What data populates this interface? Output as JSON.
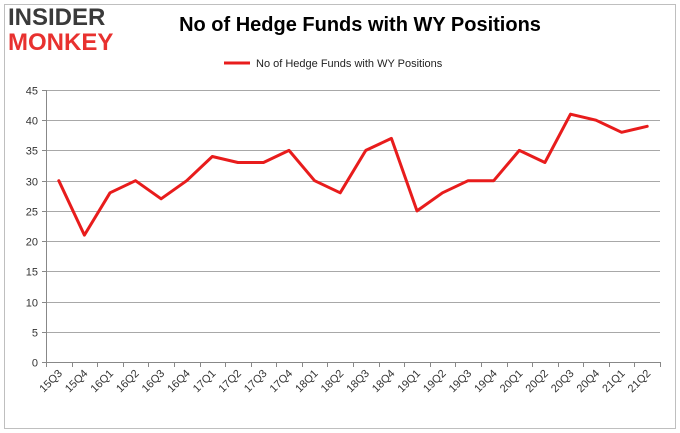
{
  "logo": {
    "top": "INSIDER",
    "bottom": "MONKEY"
  },
  "colors": {
    "series": "#e81c1c",
    "grid": "#a8a8a8",
    "axis": "#888888",
    "frame": "#bfbfbf",
    "logo_red": "#e8312f",
    "logo_dark": "#3a3a3a"
  },
  "chart_data": {
    "type": "line",
    "title": "No of Hedge Funds with WY Positions",
    "xlabel": "",
    "ylabel": "",
    "ylim": [
      0,
      45
    ],
    "yticks": [
      0,
      5,
      10,
      15,
      20,
      25,
      30,
      35,
      40,
      45
    ],
    "grid": true,
    "legend_position": "top-center",
    "categories": [
      "15Q3",
      "15Q4",
      "16Q1",
      "16Q2",
      "16Q3",
      "16Q4",
      "17Q1",
      "17Q2",
      "17Q3",
      "17Q4",
      "18Q1",
      "18Q2",
      "18Q3",
      "18Q4",
      "19Q1",
      "19Q2",
      "19Q3",
      "19Q4",
      "20Q1",
      "20Q2",
      "20Q3",
      "20Q4",
      "21Q1",
      "21Q2"
    ],
    "series": [
      {
        "name": "No of Hedge Funds with WY Positions",
        "values": [
          30,
          21,
          28,
          30,
          27,
          30,
          34,
          33,
          33,
          35,
          30,
          28,
          35,
          37,
          25,
          28,
          30,
          30,
          35,
          33,
          41,
          40,
          38,
          39
        ]
      }
    ]
  }
}
